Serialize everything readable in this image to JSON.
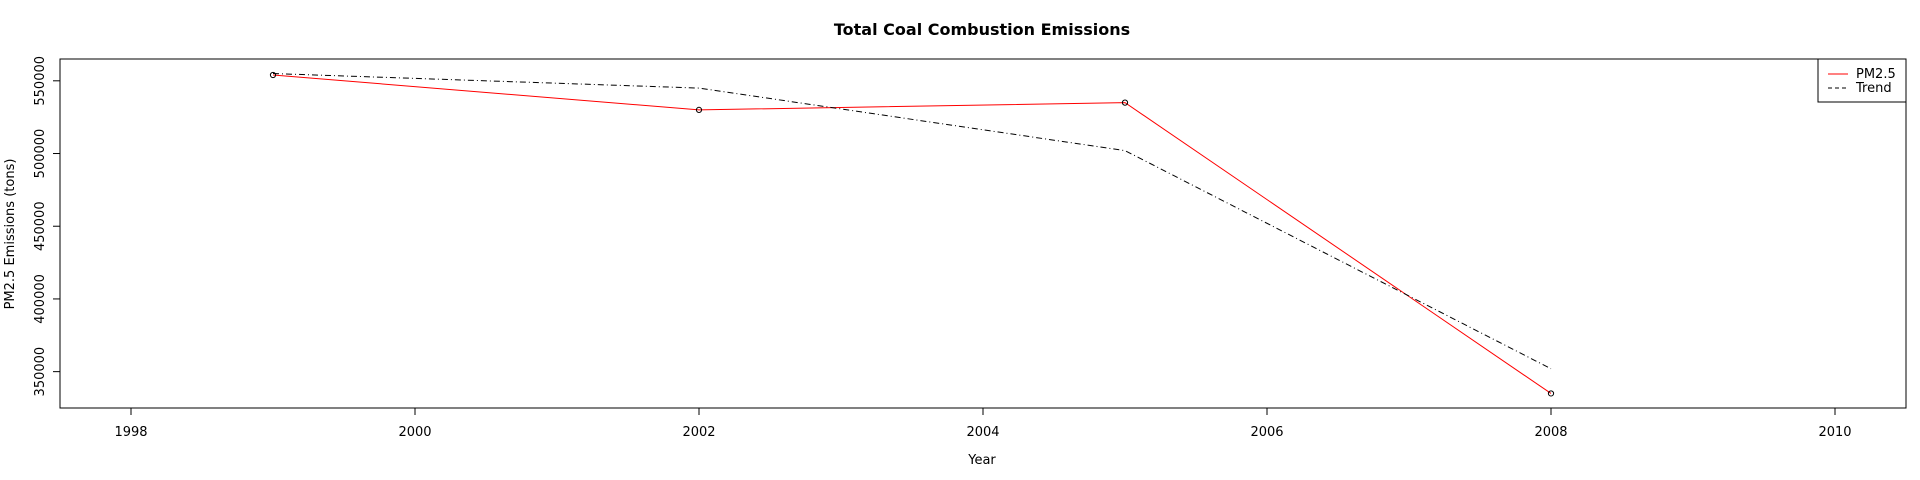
{
  "chart_data": {
    "type": "line",
    "title": "Total Coal Combustion Emissions",
    "xlabel": "Year",
    "ylabel": "PM2.5 Emissions (tons)",
    "xlim": [
      1997.5,
      2010.5
    ],
    "ylim": [
      325000,
      565000
    ],
    "x_ticks": [
      1998,
      2000,
      2002,
      2004,
      2006,
      2008,
      2010
    ],
    "y_ticks": [
      350000,
      400000,
      450000,
      500000,
      550000
    ],
    "grid": false,
    "legend_position": "top-right",
    "series": [
      {
        "name": "PM2.5",
        "color": "#ff0000",
        "style": "solid",
        "markers": true,
        "x": [
          1999,
          2002,
          2005,
          2008
        ],
        "y": [
          554000,
          530000,
          535000,
          335000
        ]
      },
      {
        "name": "Trend",
        "color": "#000000",
        "style": "dashdot",
        "markers": false,
        "x": [
          1999,
          2002,
          2005,
          2008
        ],
        "y": [
          555000,
          545000,
          502000,
          352000
        ]
      }
    ]
  }
}
